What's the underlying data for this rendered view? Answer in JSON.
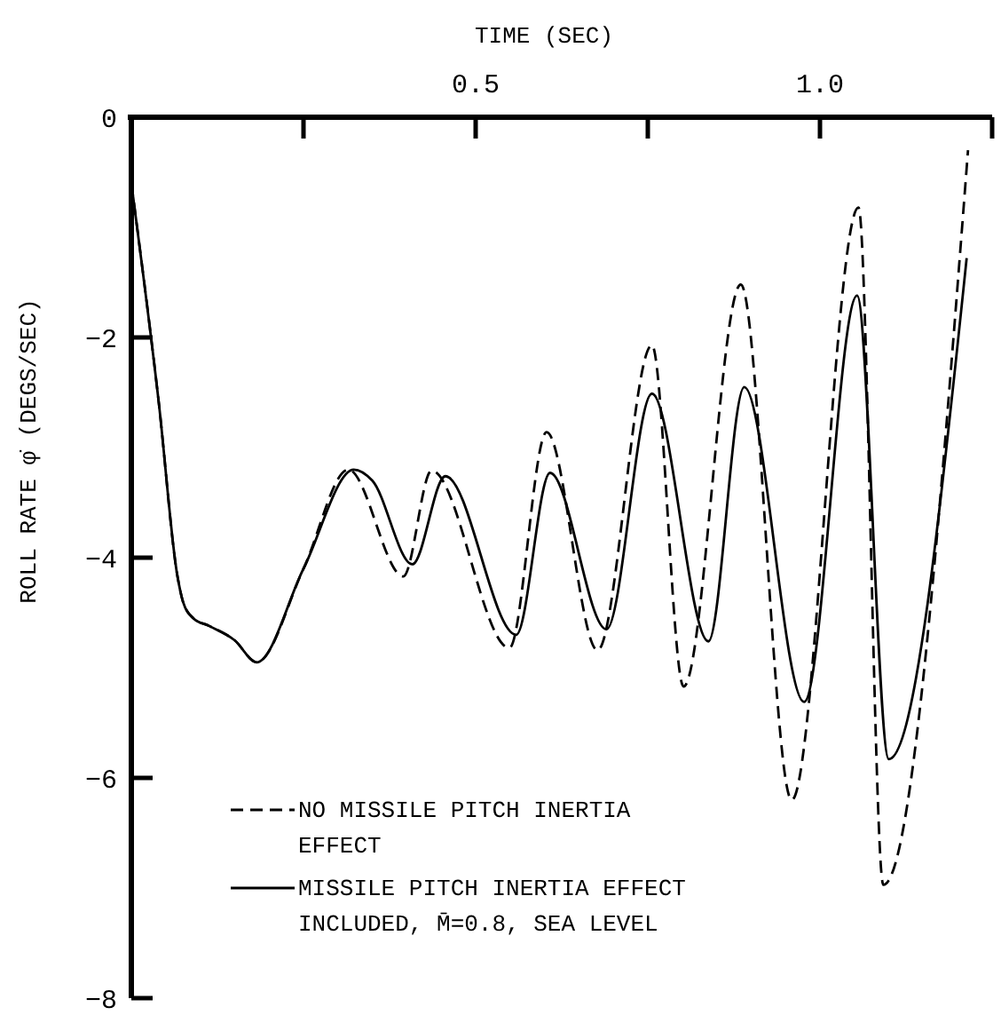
{
  "chart_data": {
    "type": "line",
    "xlabel": "TIME (SEC)",
    "ylabel": "ROLL RATE φ̇  (DEGS/SEC)",
    "xlim": [
      0,
      1.25
    ],
    "xticks": [
      {
        "value": 0.25,
        "label": null
      },
      0.5,
      {
        "value": 0.75,
        "label": null
      },
      {
        "value": 1,
        "label": "1.0"
      },
      {
        "value": 1.25,
        "label": null
      }
    ],
    "ylim": [
      -8,
      0
    ],
    "yticks": [
      -8,
      -6,
      -4,
      -2,
      0
    ],
    "grid": false,
    "legend": "bottom left",
    "marker": "none",
    "series": [
      {
        "name": "NO MISSILE PITCH INERTIA EFFECT",
        "color": "#000000",
        "line_style": "dashed",
        "x": [
          0,
          0.04,
          0.067,
          0.075,
          0.09,
          0.113,
          0.15,
          0.182,
          0.25,
          0.315,
          0.395,
          0.436,
          0.549,
          0.603,
          0.677,
          0.756,
          0.802,
          0.885,
          0.959,
          1.056,
          1.092,
          1.215
        ],
        "values": [
          -0.6,
          -2.6,
          -4.17,
          -4.4,
          -4.55,
          -4.62,
          -4.75,
          -4.95,
          -4.1,
          -3.2,
          -4.17,
          -3.21,
          -4.82,
          -2.86,
          -4.84,
          -2.07,
          -5.17,
          -1.52,
          -6.2,
          -0.82,
          -6.97,
          -0.3
        ]
      },
      {
        "name": "MISSILE PITCH INERTIA EFFECT INCLUDED, M̄=0.8, SEA LEVEL",
        "color": "#000000",
        "line_style": "solid",
        "x": [
          0,
          0.04,
          0.067,
          0.075,
          0.09,
          0.113,
          0.15,
          0.182,
          0.25,
          0.323,
          0.35,
          0.408,
          0.456,
          0.559,
          0.608,
          0.69,
          0.756,
          0.838,
          0.89,
          0.977,
          1.054,
          1.1,
          1.213
        ],
        "values": [
          -0.6,
          -2.6,
          -4.17,
          -4.4,
          -4.55,
          -4.62,
          -4.75,
          -4.95,
          -4.1,
          -3.2,
          -3.3,
          -4.06,
          -3.26,
          -4.7,
          -3.23,
          -4.65,
          -2.51,
          -4.76,
          -2.45,
          -5.31,
          -1.62,
          -5.83,
          -1.28
        ]
      }
    ]
  }
}
